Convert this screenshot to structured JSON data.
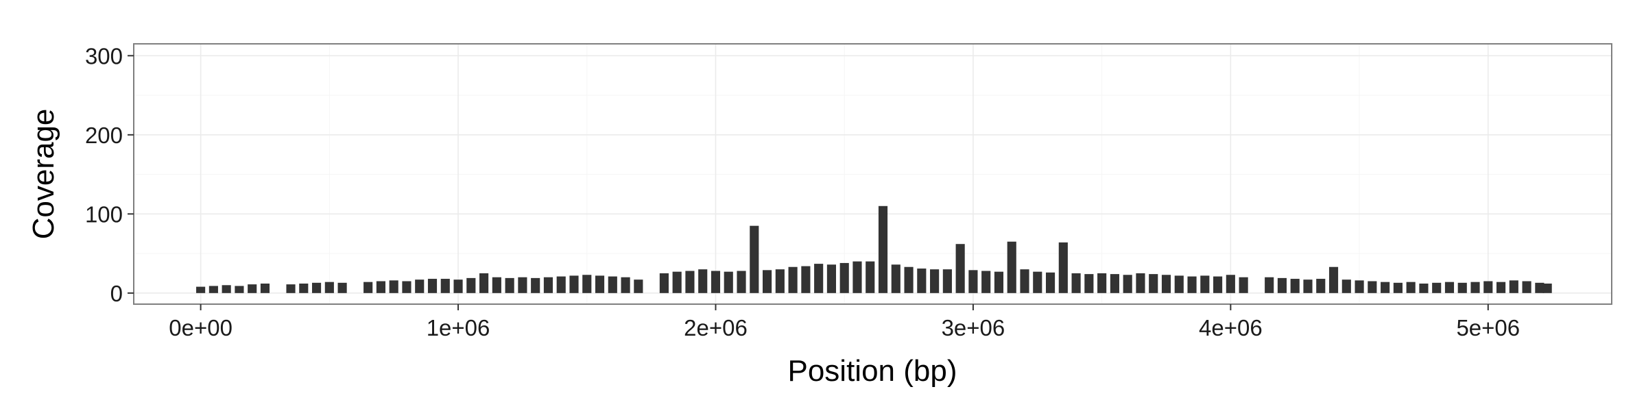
{
  "chart_data": {
    "type": "bar",
    "title": "",
    "xlabel": "Position (bp)",
    "ylabel": "Coverage",
    "xlim": [
      -260000,
      5480000
    ],
    "ylim": [
      -14,
      315
    ],
    "x_ticks": [
      0,
      1000000,
      2000000,
      3000000,
      4000000,
      5000000
    ],
    "x_tick_labels": [
      "0e+00",
      "1e+06",
      "2e+06",
      "3e+06",
      "4e+06",
      "5e+06"
    ],
    "y_ticks": [
      0,
      100,
      200,
      300
    ],
    "y_tick_labels": [
      "0",
      "100",
      "200",
      "300"
    ],
    "grid": true,
    "legend": "none",
    "bar_color": "#333333",
    "series": [
      {
        "x": [
          0,
          50000,
          100000,
          150000,
          200000,
          250000,
          300000,
          350000,
          400000,
          450000,
          500000,
          550000,
          600000,
          650000,
          700000,
          750000,
          800000,
          850000,
          900000,
          950000,
          1000000,
          1050000,
          1100000,
          1150000,
          1200000,
          1250000,
          1300000,
          1350000,
          1400000,
          1450000,
          1500000,
          1550000,
          1600000,
          1650000,
          1700000,
          1750000,
          1800000,
          1850000,
          1900000,
          1950000,
          2000000,
          2050000,
          2100000,
          2150000,
          2200000,
          2250000,
          2300000,
          2350000,
          2400000,
          2450000,
          2500000,
          2550000,
          2600000,
          2650000,
          2700000,
          2750000,
          2800000,
          2850000,
          2900000,
          2950000,
          3000000,
          3050000,
          3100000,
          3150000,
          3200000,
          3250000,
          3300000,
          3350000,
          3400000,
          3450000,
          3500000,
          3550000,
          3600000,
          3650000,
          3700000,
          3750000,
          3800000,
          3850000,
          3900000,
          3950000,
          4000000,
          4050000,
          4100000,
          4150000,
          4200000,
          4250000,
          4300000,
          4350000,
          4400000,
          4450000,
          4500000,
          4550000,
          4600000,
          4650000,
          4700000,
          4750000,
          4800000,
          4850000,
          4900000,
          4950000,
          5000000,
          5050000,
          5100000,
          5150000,
          5200000,
          5230000
        ],
        "values": [
          8,
          9,
          10,
          9,
          11,
          12,
          0,
          11,
          12,
          13,
          14,
          13,
          0,
          14,
          15,
          16,
          15,
          17,
          18,
          18,
          17,
          19,
          25,
          20,
          19,
          20,
          19,
          20,
          21,
          22,
          23,
          22,
          21,
          20,
          17,
          0,
          25,
          27,
          28,
          30,
          28,
          27,
          28,
          85,
          29,
          30,
          33,
          34,
          37,
          36,
          38,
          40,
          40,
          110,
          36,
          33,
          31,
          30,
          30,
          62,
          29,
          28,
          27,
          65,
          30,
          27,
          26,
          64,
          25,
          24,
          25,
          24,
          23,
          25,
          24,
          23,
          22,
          21,
          22,
          21,
          23,
          20,
          0,
          20,
          19,
          18,
          17,
          18,
          33,
          17,
          16,
          15,
          14,
          13,
          14,
          12,
          13,
          14,
          13,
          14,
          15,
          14,
          16,
          15,
          13,
          12
        ]
      }
    ]
  }
}
